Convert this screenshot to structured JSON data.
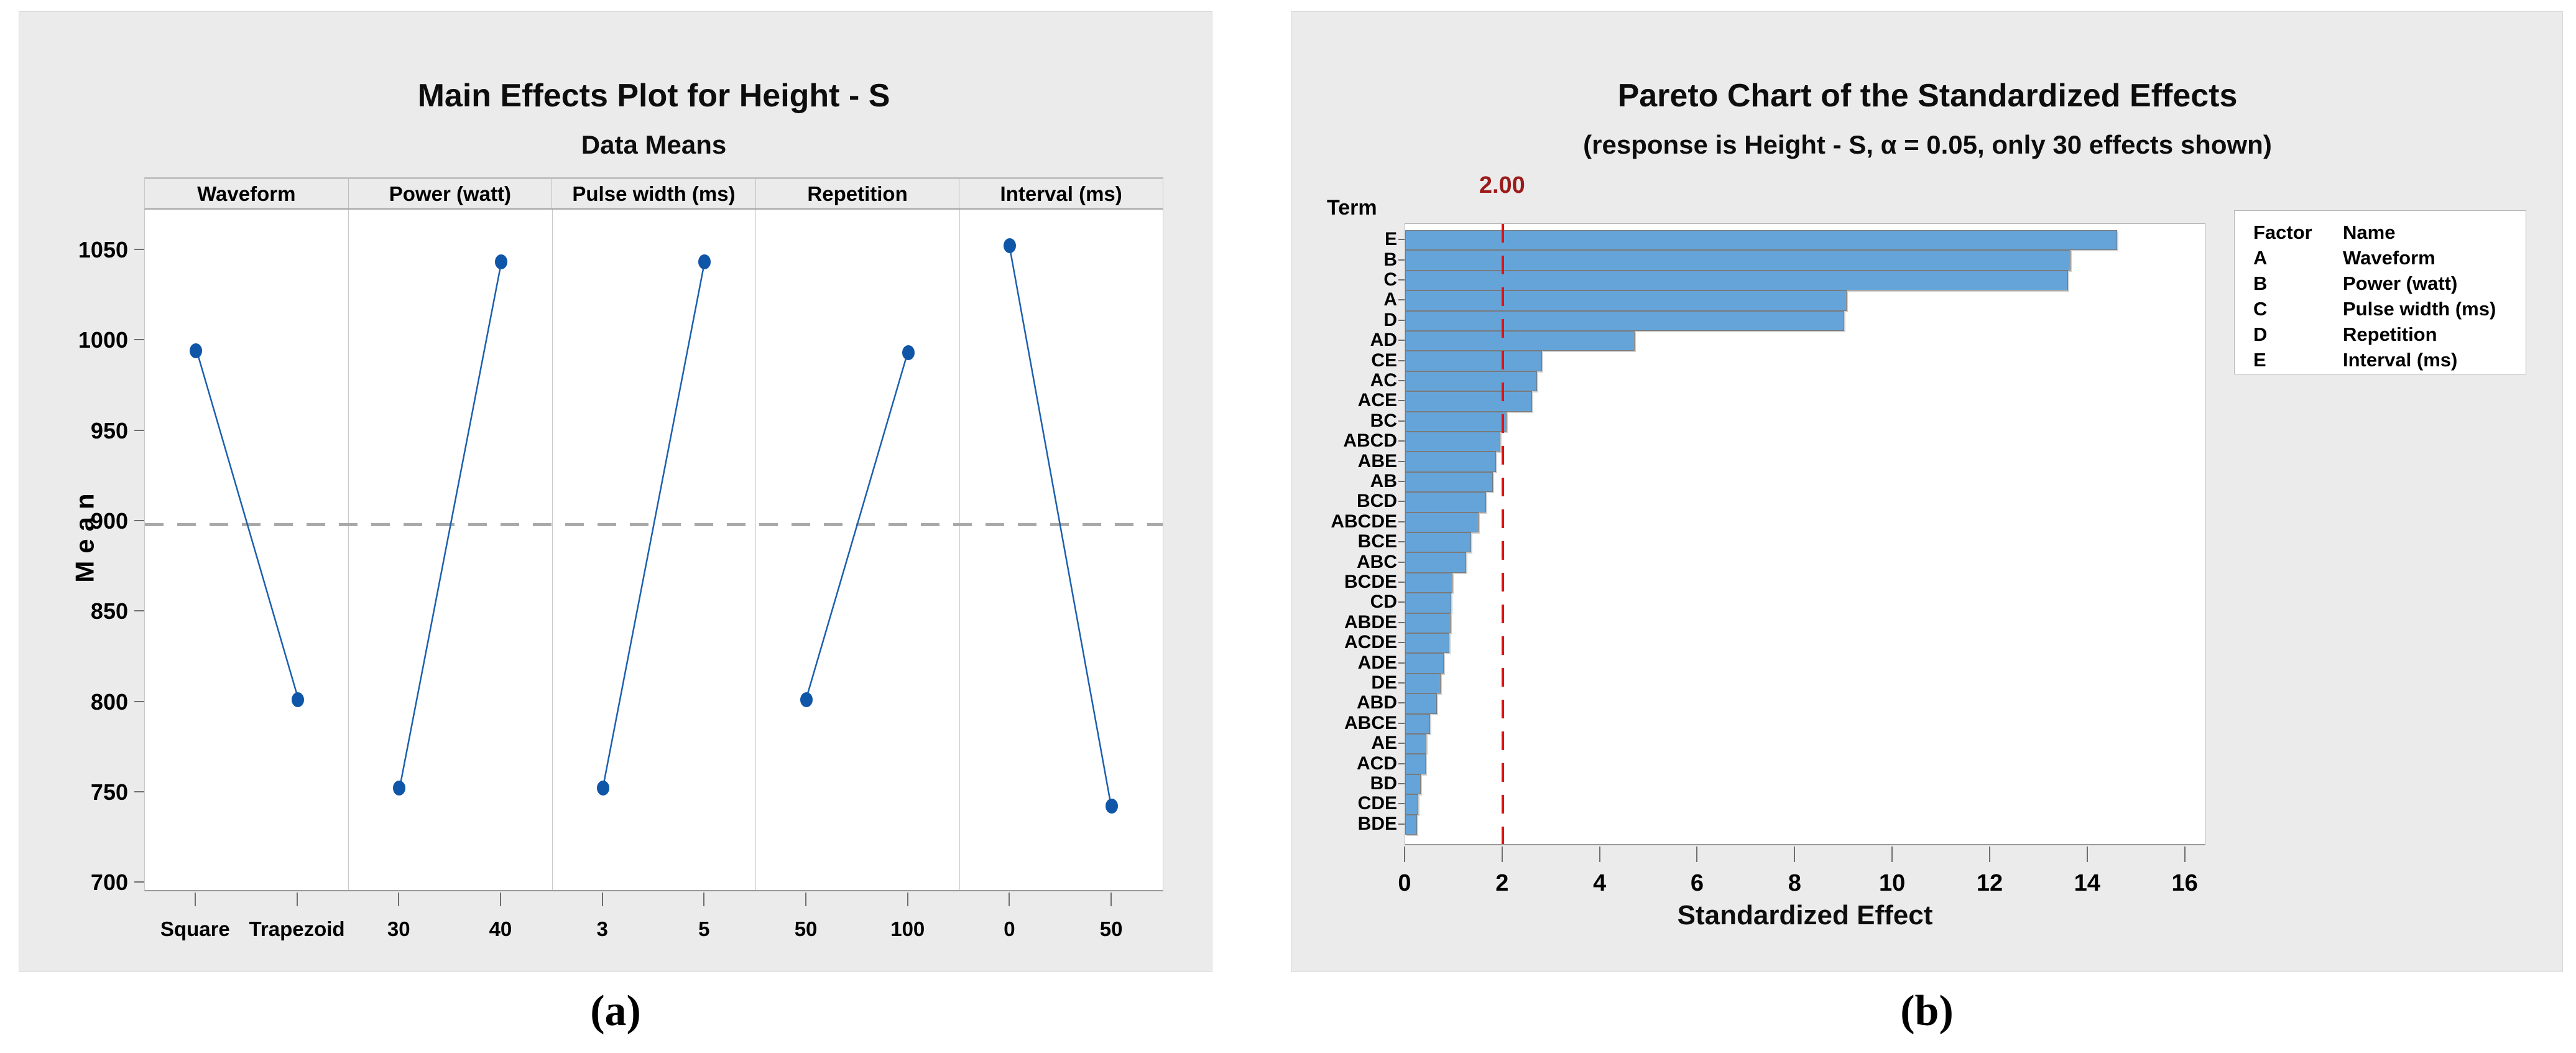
{
  "page": {
    "background": "#ffffff"
  },
  "figure_a": {
    "caption": "(a)"
  },
  "figure_b": {
    "caption": "(b)"
  },
  "chart_data": [
    {
      "type": "line",
      "name": "main-effects-plot",
      "title": "Main Effects Plot for Height - S",
      "subtitle": "Data Means",
      "ylabel": "Mean",
      "ylim": [
        695,
        1072
      ],
      "yticks": [
        700,
        750,
        800,
        850,
        900,
        950,
        1000,
        1050
      ],
      "grand_mean": 898,
      "grid": false,
      "panels": [
        {
          "label": "Waveform",
          "levels": [
            "Square",
            "Trapezoid"
          ],
          "means": [
            994,
            801
          ]
        },
        {
          "label": "Power (watt)",
          "levels": [
            "30",
            "40"
          ],
          "means": [
            752,
            1043
          ]
        },
        {
          "label": "Pulse width (ms)",
          "levels": [
            "3",
            "5"
          ],
          "means": [
            752,
            1043
          ]
        },
        {
          "label": "Repetition",
          "levels": [
            "50",
            "100"
          ],
          "means": [
            801,
            993
          ]
        },
        {
          "label": "Interval (ms)",
          "levels": [
            "0",
            "50"
          ],
          "means": [
            1052,
            742
          ]
        }
      ],
      "colors": {
        "point": "#0f56a8",
        "line": "#1b5fae",
        "mean_line": "#a9a9a9"
      }
    },
    {
      "type": "bar",
      "name": "pareto-chart",
      "title": "Pareto Chart of the Standardized Effects",
      "subtitle": "(response is Height - S, α = 0.05, only 30 effects shown)",
      "xlabel": "Standardized Effect",
      "yaxis_title": "Term",
      "xlim": [
        0,
        16.4
      ],
      "xticks": [
        0,
        2,
        4,
        6,
        8,
        10,
        12,
        14,
        16
      ],
      "reference_line": {
        "value": 2,
        "label": "2.00"
      },
      "categories": [
        "E",
        "B",
        "C",
        "A",
        "D",
        "AD",
        "CE",
        "AC",
        "ACE",
        "BC",
        "ABCD",
        "ABE",
        "AB",
        "BCD",
        "ABCDE",
        "BCE",
        "ABC",
        "BCDE",
        "CD",
        "ABDE",
        "ACDE",
        "ADE",
        "DE",
        "ABD",
        "ABCE",
        "AE",
        "ACD",
        "BD",
        "CDE",
        "BDE"
      ],
      "values": [
        14.6,
        13.65,
        13.6,
        9.05,
        9.0,
        4.7,
        2.8,
        2.7,
        2.6,
        2.08,
        1.95,
        1.86,
        1.8,
        1.66,
        1.5,
        1.35,
        1.25,
        0.97,
        0.95,
        0.93,
        0.91,
        0.79,
        0.73,
        0.65,
        0.51,
        0.43,
        0.42,
        0.32,
        0.27,
        0.24
      ],
      "legend": {
        "headers": [
          "Factor",
          "Name"
        ],
        "rows": [
          [
            "A",
            "Waveform"
          ],
          [
            "B",
            "Power (watt)"
          ],
          [
            "C",
            "Pulse width (ms)"
          ],
          [
            "D",
            "Repetition"
          ],
          [
            "E",
            "Interval (ms)"
          ]
        ]
      },
      "legend_position": "right",
      "colors": {
        "bar_fill": "#65a4d9",
        "bar_border": "#7a7a7a",
        "reference_line": "#e01212",
        "reference_label": "#9b1b1b"
      }
    }
  ]
}
